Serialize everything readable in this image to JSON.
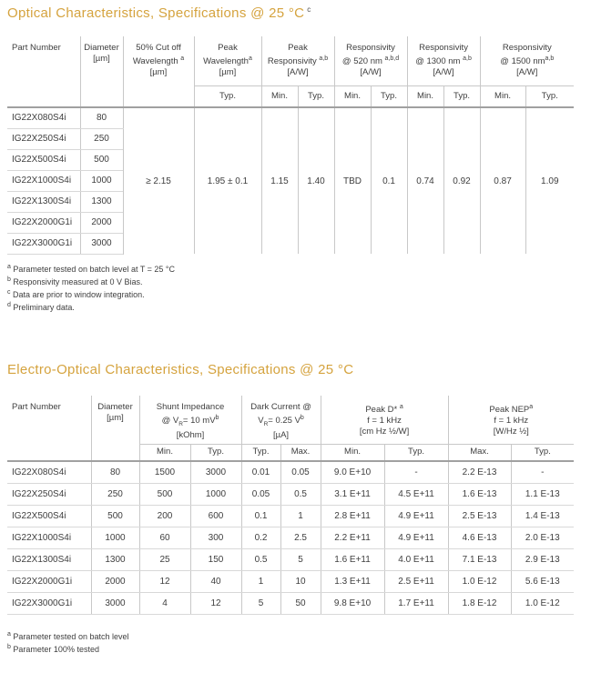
{
  "theme": {
    "accent": "#D5A33E",
    "text": "#3E3E3E",
    "grid-line": "#C8C8C8",
    "row-line": "#D8D8D8",
    "header-rule": "#A0A0A0",
    "background": "#FFFFFF"
  },
  "optical": {
    "title": "Optical Characteristics, Specifications @ 25 °C",
    "title_sup": "c",
    "header": [
      {
        "id": "part-number",
        "label": "Part Number",
        "widths": [
          80
        ],
        "subs": []
      },
      {
        "id": "diameter",
        "label": "Diameter\n[µm]",
        "widths": [
          47
        ],
        "subs": []
      },
      {
        "id": "cutoff-wavelength",
        "label": "50% Cut off\nWavelength ^{a}\n[µm]",
        "widths": [
          78
        ],
        "subs": []
      },
      {
        "id": "peak-wavelength",
        "label": "Peak\nWavelength^{a}\n[µm]",
        "widths": [
          74
        ],
        "subs": [
          "Typ."
        ]
      },
      {
        "id": "peak-responsivity",
        "label": "Peak\nResponsivity ^{a,b}\n[A/W]",
        "widths": [
          40,
          40
        ],
        "subs": [
          "Min.",
          "Typ."
        ]
      },
      {
        "id": "responsivity-520",
        "label": "Responsivity\n@ 520 nm ^{a,b,d}\n[A/W]",
        "widths": [
          40,
          40
        ],
        "subs": [
          "Min.",
          "Typ."
        ]
      },
      {
        "id": "responsivity-1300",
        "label": "Responsivity\n@ 1300 nm ^{a,b}\n[A/W]",
        "widths": [
          40,
          40
        ],
        "subs": [
          "Min.",
          "Typ."
        ]
      },
      {
        "id": "responsivity-1500",
        "label": "Responsivity\n@ 1500 nm^{a,b}\n[A/W]",
        "widths": [
          50,
          53
        ],
        "subs": [
          "Min.",
          "Typ."
        ]
      }
    ],
    "parts": [
      {
        "part": "IG22X080S4i",
        "diameter": "80"
      },
      {
        "part": "IG22X250S4i",
        "diameter": "250"
      },
      {
        "part": "IG22X500S4i",
        "diameter": "500"
      },
      {
        "part": "IG22X1000S4i",
        "diameter": "1000"
      },
      {
        "part": "IG22X1300S4i",
        "diameter": "1300"
      },
      {
        "part": "IG22X2000G1i",
        "diameter": "2000"
      },
      {
        "part": "IG22X3000G1i",
        "diameter": "3000"
      }
    ],
    "shared_values": [
      "≥ 2.15",
      "1.95 ± 0.1",
      "1.15",
      "1.40",
      "TBD",
      "0.1",
      "0.74",
      "0.92",
      "0.87",
      "1.09"
    ],
    "footnotes": [
      {
        "sup": "a",
        "text": "Parameter tested on batch level at T = 25 °C"
      },
      {
        "sup": "b",
        "text": "Responsivity measured at 0 V Bias."
      },
      {
        "sup": "c",
        "text": "Data are prior to window integration."
      },
      {
        "sup": "d",
        "text": "Preliminary data."
      }
    ]
  },
  "electro": {
    "title": "Electro-Optical Characteristics, Specifications @ 25 °C",
    "header": [
      {
        "id": "part-number",
        "label": "Part Number",
        "widths": [
          92
        ],
        "subs": []
      },
      {
        "id": "diameter",
        "label": "Diameter\n[µm]",
        "widths": [
          53
        ],
        "subs": []
      },
      {
        "id": "shunt-impedance",
        "label": "Shunt Impedance\n@ V_{R}= 10 mV^{b}\n[kOhm]",
        "widths": [
          56,
          56
        ],
        "subs": [
          "Min.",
          "Typ."
        ]
      },
      {
        "id": "dark-current",
        "label": "Dark Current @\nV_{R}= 0.25 V^{b}\n[µA]",
        "widths": [
          43,
          44
        ],
        "subs": [
          "Typ.",
          "Max."
        ]
      },
      {
        "id": "peak-d-star",
        "label": "Peak D* ^{a}\nf = 1 kHz\n[cm Hz ½/W]",
        "widths": [
          70,
          70
        ],
        "subs": [
          "Min.",
          "Typ."
        ]
      },
      {
        "id": "peak-nep",
        "label": "Peak NEP^{a}\nf = 1 kHz\n[W/Hz ½]",
        "widths": [
          69,
          69
        ],
        "subs": [
          "Max.",
          "Typ."
        ]
      }
    ],
    "rows": [
      [
        "IG22X080S4i",
        "80",
        "1500",
        "3000",
        "0.01",
        "0.05",
        "9.0 E+10",
        "-",
        "2.2 E-13",
        "-"
      ],
      [
        "IG22X250S4i",
        "250",
        "500",
        "1000",
        "0.05",
        "0.5",
        "3.1 E+11",
        "4.5 E+11",
        "1.6 E-13",
        "1.1 E-13"
      ],
      [
        "IG22X500S4i",
        "500",
        "200",
        "600",
        "0.1",
        "1",
        "2.8 E+11",
        "4.9 E+11",
        "2.5 E-13",
        "1.4 E-13"
      ],
      [
        "IG22X1000S4i",
        "1000",
        "60",
        "300",
        "0.2",
        "2.5",
        "2.2 E+11",
        "4.9 E+11",
        "4.6 E-13",
        "2.0 E-13"
      ],
      [
        "IG22X1300S4i",
        "1300",
        "25",
        "150",
        "0.5",
        "5",
        "1.6 E+11",
        "4.0 E+11",
        "7.1 E-13",
        "2.9 E-13"
      ],
      [
        "IG22X2000G1i",
        "2000",
        "12",
        "40",
        "1",
        "10",
        "1.3 E+11",
        "2.5 E+11",
        "1.0 E-12",
        "5.6 E-13"
      ],
      [
        "IG22X3000G1i",
        "3000",
        "4",
        "12",
        "5",
        "50",
        "9.8 E+10",
        "1.7 E+11",
        "1.8 E-12",
        "1.0 E-12"
      ]
    ],
    "footnotes": [
      {
        "sup": "a",
        "text": "Parameter tested on batch level"
      },
      {
        "sup": "b",
        "text": "Parameter 100% tested"
      }
    ]
  }
}
